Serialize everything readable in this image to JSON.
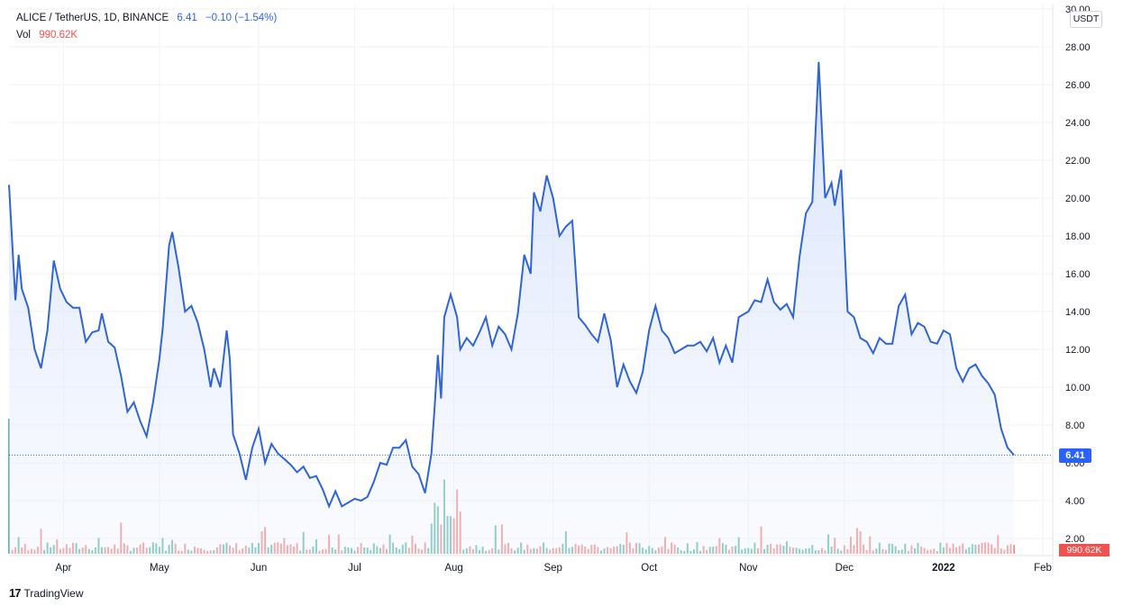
{
  "header": {
    "symbol": "ALICE / TetherUS, 1D, BINANCE",
    "last": "6.41",
    "change": "−0.10 (−1.54%)",
    "vol_label": "Vol",
    "vol_value": "990.62K"
  },
  "axis": {
    "unit": "USDT",
    "price_badge": "6.41",
    "vol_badge": "990.62K",
    "y_ticks": [
      "30.00",
      "28.00",
      "26.00",
      "24.00",
      "22.00",
      "20.00",
      "18.00",
      "16.00",
      "14.00",
      "12.00",
      "10.00",
      "8.00",
      "6.00",
      "4.00",
      "2.00"
    ],
    "x_ticks": [
      "Apr",
      "May",
      "Jun",
      "Jul",
      "Aug",
      "Sep",
      "Oct",
      "Nov",
      "Dec",
      "2022",
      "Feb"
    ]
  },
  "brand": {
    "logo": "17",
    "name": "TradingView"
  },
  "colors": {
    "line": "#2f65d6",
    "fill": "#d6e2fb",
    "vol_up": "#5fb8a8",
    "vol_down": "#ef8a87",
    "grid": "#f0f2f5"
  },
  "chart_data": {
    "type": "area",
    "title": "ALICE / TetherUS, 1D, BINANCE",
    "y_unit": "USDT",
    "ylim": [
      0,
      30
    ],
    "x_range": [
      "2021-03-15",
      "2022-02-01"
    ],
    "grid": true,
    "last_price": 6.41,
    "series": [
      {
        "name": "ALICE / TetherUS",
        "points": [
          [
            "2021-03-15",
            20.7
          ],
          [
            "2021-03-17",
            14.6
          ],
          [
            "2021-03-18",
            17.0
          ],
          [
            "2021-03-19",
            15.2
          ],
          [
            "2021-03-21",
            14.2
          ],
          [
            "2021-03-23",
            12.0
          ],
          [
            "2021-03-25",
            11.0
          ],
          [
            "2021-03-27",
            13.0
          ],
          [
            "2021-03-29",
            16.7
          ],
          [
            "2021-03-31",
            15.2
          ],
          [
            "2021-04-02",
            14.5
          ],
          [
            "2021-04-04",
            14.2
          ],
          [
            "2021-04-06",
            14.2
          ],
          [
            "2021-04-08",
            12.4
          ],
          [
            "2021-04-10",
            12.9
          ],
          [
            "2021-04-12",
            13.0
          ],
          [
            "2021-04-13",
            13.9
          ],
          [
            "2021-04-15",
            12.4
          ],
          [
            "2021-04-17",
            12.1
          ],
          [
            "2021-04-19",
            10.6
          ],
          [
            "2021-04-21",
            8.7
          ],
          [
            "2021-04-23",
            9.2
          ],
          [
            "2021-04-25",
            8.2
          ],
          [
            "2021-04-27",
            7.4
          ],
          [
            "2021-04-29",
            9.2
          ],
          [
            "2021-05-01",
            11.5
          ],
          [
            "2021-05-02",
            13.1
          ],
          [
            "2021-05-04",
            17.5
          ],
          [
            "2021-05-05",
            18.2
          ],
          [
            "2021-05-07",
            16.3
          ],
          [
            "2021-05-09",
            14.0
          ],
          [
            "2021-05-11",
            14.3
          ],
          [
            "2021-05-13",
            13.4
          ],
          [
            "2021-05-15",
            12.0
          ],
          [
            "2021-05-17",
            10.0
          ],
          [
            "2021-05-18",
            11.0
          ],
          [
            "2021-05-20",
            10.0
          ],
          [
            "2021-05-22",
            13.0
          ],
          [
            "2021-05-23",
            11.5
          ],
          [
            "2021-05-24",
            7.5
          ],
          [
            "2021-05-26",
            6.5
          ],
          [
            "2021-05-28",
            5.1
          ],
          [
            "2021-05-30",
            6.8
          ],
          [
            "2021-06-01",
            7.8
          ],
          [
            "2021-06-03",
            6.0
          ],
          [
            "2021-06-05",
            7.0
          ],
          [
            "2021-06-07",
            6.5
          ],
          [
            "2021-06-09",
            6.2
          ],
          [
            "2021-06-11",
            5.9
          ],
          [
            "2021-06-13",
            5.5
          ],
          [
            "2021-06-15",
            5.8
          ],
          [
            "2021-06-17",
            5.2
          ],
          [
            "2021-06-19",
            5.3
          ],
          [
            "2021-06-21",
            4.6
          ],
          [
            "2021-06-23",
            3.7
          ],
          [
            "2021-06-25",
            4.5
          ],
          [
            "2021-06-27",
            3.7
          ],
          [
            "2021-06-29",
            3.9
          ],
          [
            "2021-07-01",
            4.1
          ],
          [
            "2021-07-03",
            4.0
          ],
          [
            "2021-07-05",
            4.2
          ],
          [
            "2021-07-07",
            5.0
          ],
          [
            "2021-07-09",
            6.0
          ],
          [
            "2021-07-11",
            5.9
          ],
          [
            "2021-07-13",
            6.8
          ],
          [
            "2021-07-15",
            6.8
          ],
          [
            "2021-07-17",
            7.2
          ],
          [
            "2021-07-19",
            5.8
          ],
          [
            "2021-07-21",
            5.4
          ],
          [
            "2021-07-23",
            4.4
          ],
          [
            "2021-07-25",
            6.5
          ],
          [
            "2021-07-26",
            9.0
          ],
          [
            "2021-07-27",
            11.7
          ],
          [
            "2021-07-28",
            9.4
          ],
          [
            "2021-07-29",
            13.7
          ],
          [
            "2021-07-31",
            14.9
          ],
          [
            "2021-08-02",
            13.7
          ],
          [
            "2021-08-03",
            12.0
          ],
          [
            "2021-08-05",
            12.6
          ],
          [
            "2021-08-07",
            12.2
          ],
          [
            "2021-08-09",
            12.9
          ],
          [
            "2021-08-11",
            13.7
          ],
          [
            "2021-08-13",
            12.2
          ],
          [
            "2021-08-15",
            13.2
          ],
          [
            "2021-08-17",
            12.8
          ],
          [
            "2021-08-19",
            12.0
          ],
          [
            "2021-08-21",
            13.9
          ],
          [
            "2021-08-23",
            17.0
          ],
          [
            "2021-08-25",
            16.0
          ],
          [
            "2021-08-26",
            20.3
          ],
          [
            "2021-08-28",
            19.3
          ],
          [
            "2021-08-30",
            21.2
          ],
          [
            "2021-09-01",
            20.0
          ],
          [
            "2021-09-03",
            18.0
          ],
          [
            "2021-09-05",
            18.5
          ],
          [
            "2021-09-07",
            18.8
          ],
          [
            "2021-09-09",
            13.7
          ],
          [
            "2021-09-11",
            13.3
          ],
          [
            "2021-09-13",
            12.8
          ],
          [
            "2021-09-15",
            12.4
          ],
          [
            "2021-09-17",
            13.9
          ],
          [
            "2021-09-19",
            12.5
          ],
          [
            "2021-09-21",
            10.0
          ],
          [
            "2021-09-23",
            11.2
          ],
          [
            "2021-09-25",
            10.3
          ],
          [
            "2021-09-27",
            9.7
          ],
          [
            "2021-09-29",
            10.8
          ],
          [
            "2021-10-01",
            13.0
          ],
          [
            "2021-10-03",
            14.3
          ],
          [
            "2021-10-05",
            13.0
          ],
          [
            "2021-10-07",
            12.6
          ],
          [
            "2021-10-09",
            11.8
          ],
          [
            "2021-10-11",
            12.0
          ],
          [
            "2021-10-13",
            12.2
          ],
          [
            "2021-10-15",
            12.2
          ],
          [
            "2021-10-17",
            12.4
          ],
          [
            "2021-10-19",
            11.9
          ],
          [
            "2021-10-21",
            12.6
          ],
          [
            "2021-10-23",
            11.3
          ],
          [
            "2021-10-25",
            12.2
          ],
          [
            "2021-10-27",
            11.3
          ],
          [
            "2021-10-29",
            13.7
          ],
          [
            "2021-11-01",
            14.0
          ],
          [
            "2021-11-03",
            14.6
          ],
          [
            "2021-11-05",
            14.5
          ],
          [
            "2021-11-07",
            15.7
          ],
          [
            "2021-11-09",
            14.5
          ],
          [
            "2021-11-11",
            14.1
          ],
          [
            "2021-11-13",
            14.4
          ],
          [
            "2021-11-15",
            13.7
          ],
          [
            "2021-11-17",
            16.9
          ],
          [
            "2021-11-19",
            19.2
          ],
          [
            "2021-11-21",
            19.8
          ],
          [
            "2021-11-23",
            27.2
          ],
          [
            "2021-11-25",
            20.0
          ],
          [
            "2021-11-27",
            20.8
          ],
          [
            "2021-11-28",
            19.6
          ],
          [
            "2021-11-30",
            21.5
          ],
          [
            "2021-12-02",
            14.0
          ],
          [
            "2021-12-04",
            13.7
          ],
          [
            "2021-12-06",
            12.6
          ],
          [
            "2021-12-08",
            12.4
          ],
          [
            "2021-12-10",
            11.8
          ],
          [
            "2021-12-12",
            12.6
          ],
          [
            "2021-12-14",
            12.3
          ],
          [
            "2021-12-16",
            12.3
          ],
          [
            "2021-12-18",
            14.3
          ],
          [
            "2021-12-20",
            14.9
          ],
          [
            "2021-12-22",
            12.8
          ],
          [
            "2021-12-24",
            13.4
          ],
          [
            "2021-12-26",
            13.2
          ],
          [
            "2021-12-28",
            12.4
          ],
          [
            "2021-12-30",
            12.3
          ],
          [
            "2022-01-01",
            13.0
          ],
          [
            "2022-01-03",
            12.8
          ],
          [
            "2022-01-05",
            11.0
          ],
          [
            "2022-01-07",
            10.3
          ],
          [
            "2022-01-09",
            11.0
          ],
          [
            "2022-01-11",
            11.2
          ],
          [
            "2022-01-13",
            10.6
          ],
          [
            "2022-01-15",
            10.2
          ],
          [
            "2022-01-17",
            9.6
          ],
          [
            "2022-01-19",
            7.8
          ],
          [
            "2022-01-21",
            6.8
          ],
          [
            "2022-01-23",
            6.41
          ]
        ]
      },
      {
        "name": "Vol",
        "unit": "K",
        "last": 990.62,
        "description": "daily volume bars, relative height only"
      }
    ]
  }
}
